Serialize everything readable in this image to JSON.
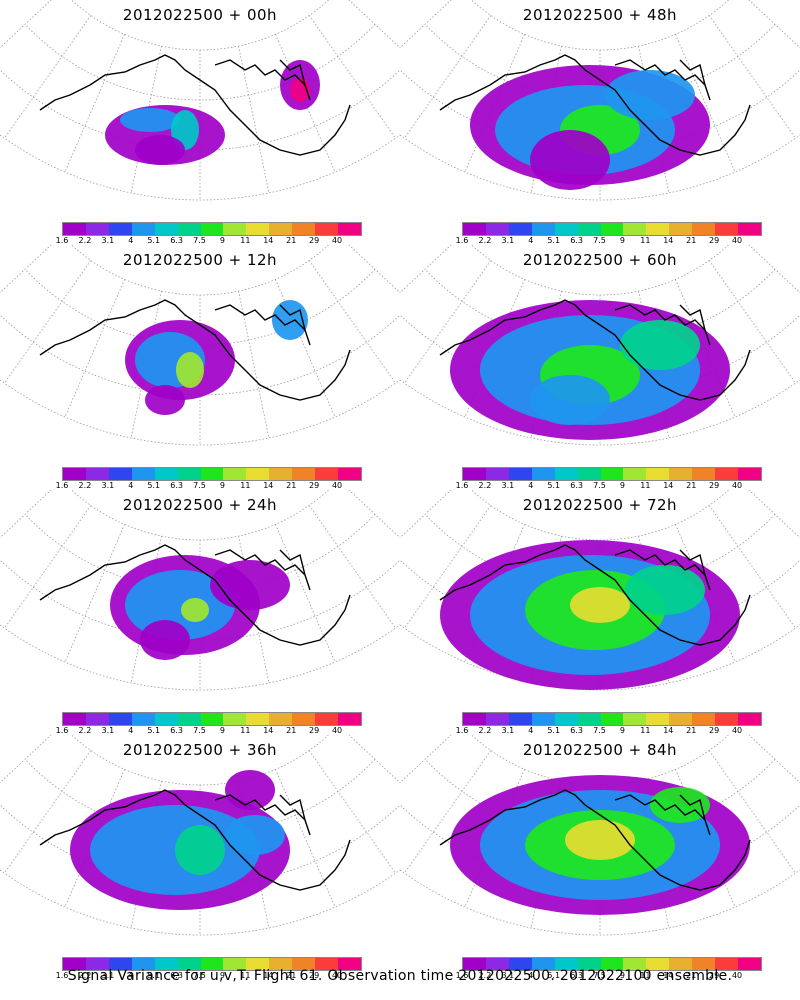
{
  "panels": [
    {
      "title": "2012022500  +  00h",
      "id": "p00"
    },
    {
      "title": "2012022500  +  48h",
      "id": "p48"
    },
    {
      "title": "2012022500  +  12h",
      "id": "p12"
    },
    {
      "title": "2012022500  +  60h",
      "id": "p60"
    },
    {
      "title": "2012022500  +  24h",
      "id": "p24"
    },
    {
      "title": "2012022500  +  72h",
      "id": "p72"
    },
    {
      "title": "2012022500  +  36h",
      "id": "p36"
    },
    {
      "title": "2012022500  +  84h",
      "id": "p84"
    }
  ],
  "colorbar": {
    "ticks": [
      "1.6",
      "2.2",
      "3.1",
      "4",
      "5.1",
      "6.3",
      "7.5",
      "9",
      "11",
      "14",
      "21",
      "29",
      "40"
    ],
    "colors": [
      "#a000c8",
      "#8c28e6",
      "#2e46f0",
      "#1e96f0",
      "#00c8c8",
      "#00d28c",
      "#1ee61e",
      "#a0e632",
      "#e6dc32",
      "#e6af2d",
      "#f08228",
      "#fa3c3c",
      "#f00082"
    ]
  },
  "caption": "Signal Variance for u,v,T. Flight 61. Observation time 2012022500. 2012022100 ensemble."
}
